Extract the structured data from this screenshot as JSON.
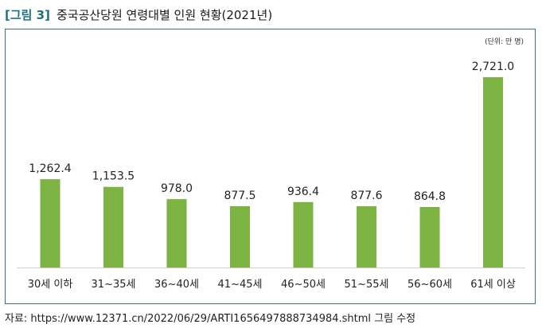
{
  "figure": {
    "label": "[그림 3]",
    "title": "중국공산당원 연령대별 인원 현황(2021년)",
    "unit": "(단위: 만 명)"
  },
  "source_text": "자료: https://www.12371.cn/2022/06/29/ARTI1656497888734984.shtml 그림 수정",
  "colors": {
    "bar": "#7cb342",
    "border": "#3d6f85",
    "fig_label": "#1f6f86"
  },
  "chart_data": {
    "type": "bar",
    "title": "중국공산당원 연령대별 인원 현황(2021년)",
    "categories": [
      "30세 이하",
      "31~35세",
      "36~40세",
      "41~45세",
      "46~50세",
      "51~55세",
      "56~60세",
      "61세 이상"
    ],
    "values": [
      1262.4,
      1153.5,
      978.0,
      877.5,
      936.4,
      877.6,
      864.8,
      2721.0
    ],
    "value_labels": [
      "1,262.4",
      "1,153.5",
      "978.0",
      "877.5",
      "936.4",
      "877.6",
      "864.8",
      "2,721.0"
    ],
    "ylim": [
      0,
      2721.0
    ],
    "grid": false,
    "legend": "none",
    "ylabel": "",
    "xlabel": ""
  }
}
